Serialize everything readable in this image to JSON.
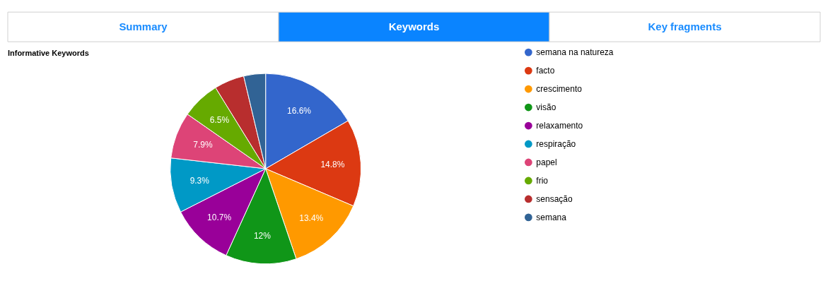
{
  "chart_data": {
    "type": "pie",
    "title": "Informative Keywords",
    "categories": [
      "semana na natureza",
      "facto",
      "crescimento",
      "visão",
      "relaxamento",
      "respiração",
      "papel",
      "frio",
      "sensação",
      "semana"
    ],
    "values": [
      16.6,
      14.8,
      13.4,
      12,
      10.7,
      9.3,
      7.9,
      6.5,
      5.1,
      3.7
    ],
    "colors": [
      "#3366cc",
      "#dc3912",
      "#ff9900",
      "#109618",
      "#990099",
      "#0099c6",
      "#dd4477",
      "#66aa00",
      "#b82e2e",
      "#316395"
    ],
    "value_labels": [
      "16.6%",
      "14.8%",
      "13.4%",
      "12%",
      "10.7%",
      "9.3%",
      "7.9%",
      "6.5%",
      null,
      null
    ],
    "legend": "right",
    "annotations": [
      "Summary",
      "Keywords",
      "Key fragments"
    ]
  }
}
